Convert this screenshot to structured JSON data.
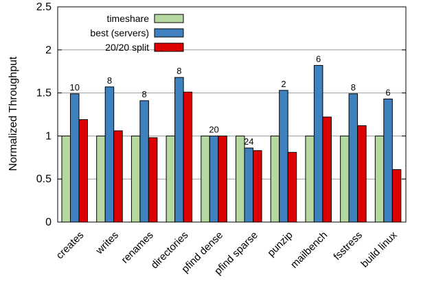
{
  "chart_data": {
    "type": "bar",
    "ylabel": "Normalized Throughput",
    "ylim": [
      0,
      2.5
    ],
    "yticks": [
      0,
      0.5,
      1,
      1.5,
      2,
      2.5
    ],
    "ytick_labels": [
      "0",
      "0.5",
      "1",
      "1.5",
      "2",
      "2.5"
    ],
    "grid": true,
    "legend_position": "top-right",
    "categories": [
      "creates",
      "writes",
      "renames",
      "directories",
      "pfind dense",
      "pfind sparse",
      "punzip",
      "mailbench",
      "fsstress",
      "build linux"
    ],
    "series": [
      {
        "name": "timeshare",
        "color": "#b5d8a1",
        "values": [
          1,
          1,
          1,
          1,
          1,
          1,
          1,
          1,
          1,
          1
        ]
      },
      {
        "name": "best (servers)",
        "color": "#3f80bf",
        "values": [
          1.49,
          1.57,
          1.41,
          1.68,
          1.0,
          0.86,
          1.53,
          1.82,
          1.49,
          1.43
        ]
      },
      {
        "name": "20/20 split",
        "color": "#dd0000",
        "values": [
          1.19,
          1.06,
          0.98,
          1.51,
          1.0,
          0.83,
          0.81,
          1.22,
          1.12,
          0.61
        ]
      }
    ],
    "annotations": [
      "10",
      "8",
      "8",
      "8",
      "20",
      "24",
      "2",
      "6",
      "8",
      "6"
    ]
  }
}
